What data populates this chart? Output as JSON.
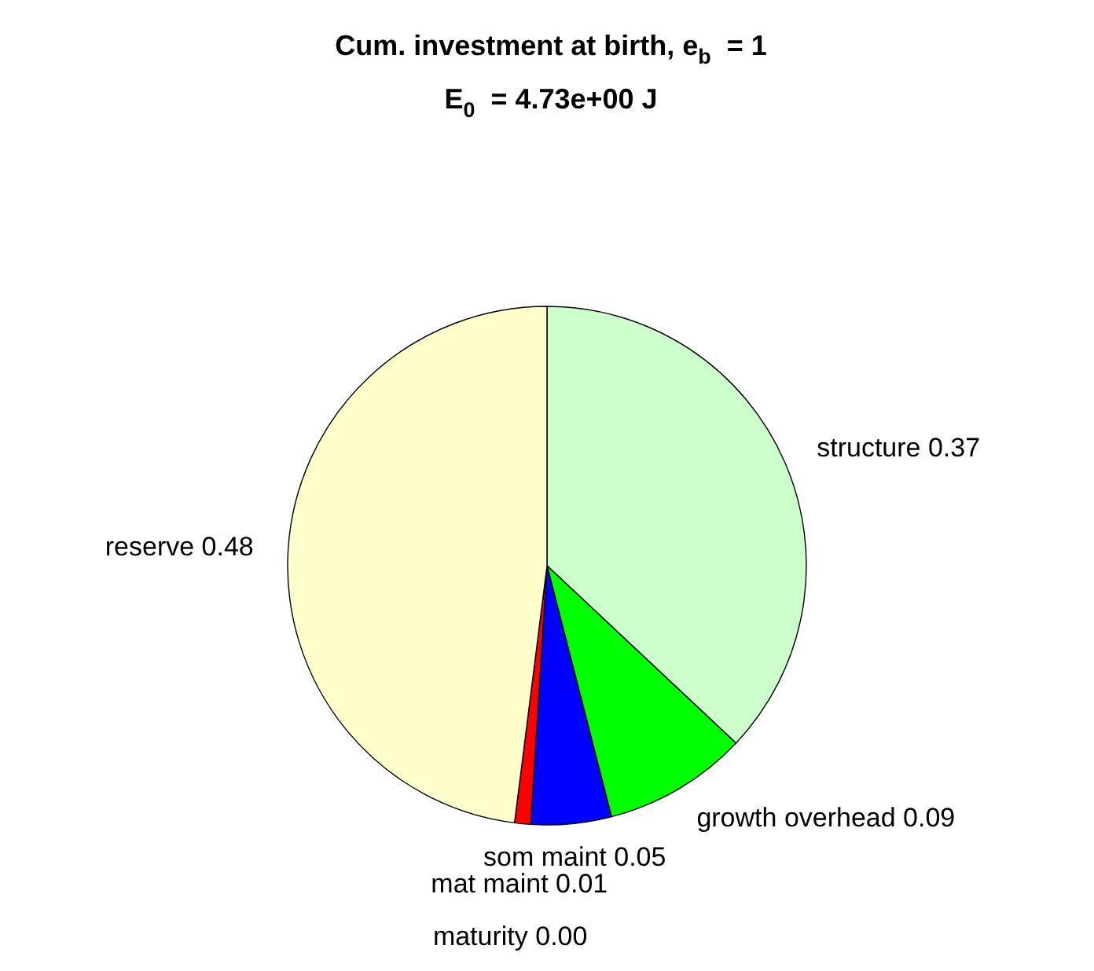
{
  "chart_data": {
    "type": "pie",
    "title": "Cum. investment at birth, e$_{b}$ = 1",
    "subtitle": "E$_{0}$ = 4.73e+00 J",
    "categories": [
      "structure",
      "growth overhead",
      "som maint",
      "mat maint",
      "maturity",
      "reserve"
    ],
    "values": [
      0.37,
      0.09,
      0.05,
      0.01,
      0.0,
      0.48
    ],
    "value_labels": [
      "0.37",
      "0.09",
      "0.05",
      "0.01",
      "0.00",
      "0.48"
    ],
    "colors": [
      "#ccffcc",
      "#00ff00",
      "#0000ff",
      "#ff0000",
      "#ff00ff",
      "#ffffcc"
    ]
  }
}
